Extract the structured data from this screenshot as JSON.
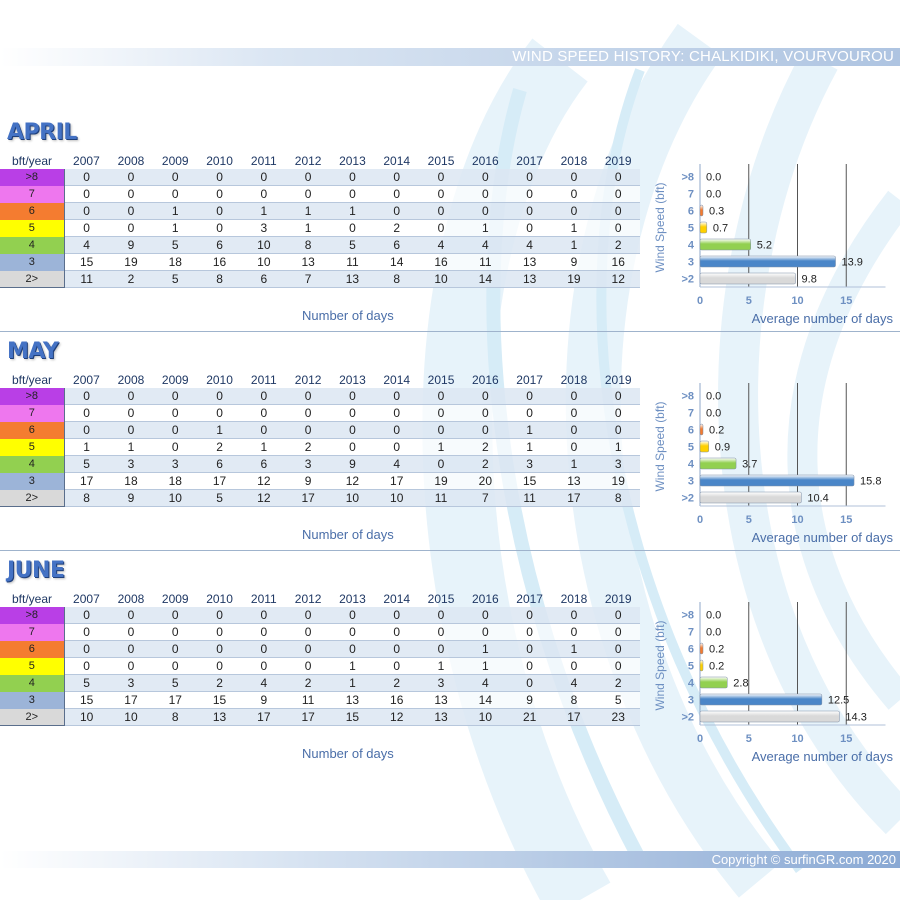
{
  "header": {
    "title": "WIND SPEED HISTORY: CHALKIDIKI, VOURVOUROU"
  },
  "footer": {
    "copyright": "Copyright © surfinGR.com 2020"
  },
  "table_header": "bft/year",
  "years": [
    "2007",
    "2008",
    "2009",
    "2010",
    "2011",
    "2012",
    "2013",
    "2014",
    "2015",
    "2016",
    "2017",
    "2018",
    "2019"
  ],
  "row_labels": [
    ">8",
    "7",
    "6",
    "5",
    "4",
    "3",
    "2>"
  ],
  "row_colors": [
    "#b93fe6",
    "#ee77ee",
    "#f47c30",
    "#ffff00",
    "#92d050",
    "#9cb4d8",
    "#d9d9d9"
  ],
  "days_caption": "Number of days",
  "months": [
    {
      "name": "APRIL",
      "rows": [
        [
          0,
          0,
          0,
          0,
          0,
          0,
          0,
          0,
          0,
          0,
          0,
          0,
          0
        ],
        [
          0,
          0,
          0,
          0,
          0,
          0,
          0,
          0,
          0,
          0,
          0,
          0,
          0
        ],
        [
          0,
          0,
          1,
          0,
          1,
          1,
          1,
          0,
          0,
          0,
          0,
          0,
          0
        ],
        [
          0,
          0,
          1,
          0,
          3,
          1,
          0,
          2,
          0,
          1,
          0,
          1,
          0
        ],
        [
          4,
          9,
          5,
          6,
          10,
          8,
          5,
          6,
          4,
          4,
          4,
          1,
          2
        ],
        [
          15,
          19,
          18,
          16,
          10,
          13,
          11,
          14,
          16,
          11,
          13,
          9,
          16
        ],
        [
          11,
          2,
          5,
          8,
          6,
          7,
          13,
          8,
          10,
          14,
          13,
          19,
          12
        ]
      ]
    },
    {
      "name": "MAY",
      "rows": [
        [
          0,
          0,
          0,
          0,
          0,
          0,
          0,
          0,
          0,
          0,
          0,
          0,
          0
        ],
        [
          0,
          0,
          0,
          0,
          0,
          0,
          0,
          0,
          0,
          0,
          0,
          0,
          0
        ],
        [
          0,
          0,
          0,
          1,
          0,
          0,
          0,
          0,
          0,
          0,
          1,
          0,
          0
        ],
        [
          1,
          1,
          0,
          2,
          1,
          2,
          0,
          0,
          1,
          2,
          1,
          0,
          1
        ],
        [
          5,
          3,
          3,
          6,
          6,
          3,
          9,
          4,
          0,
          2,
          3,
          1,
          3
        ],
        [
          17,
          18,
          18,
          17,
          12,
          9,
          12,
          17,
          19,
          20,
          15,
          13,
          19
        ],
        [
          8,
          9,
          10,
          5,
          12,
          17,
          10,
          10,
          11,
          7,
          11,
          17,
          8
        ]
      ]
    },
    {
      "name": "JUNE",
      "rows": [
        [
          0,
          0,
          0,
          0,
          0,
          0,
          0,
          0,
          0,
          0,
          0,
          0,
          0
        ],
        [
          0,
          0,
          0,
          0,
          0,
          0,
          0,
          0,
          0,
          0,
          0,
          0,
          0
        ],
        [
          0,
          0,
          0,
          0,
          0,
          0,
          0,
          0,
          0,
          1,
          0,
          1,
          0
        ],
        [
          0,
          0,
          0,
          0,
          0,
          0,
          1,
          0,
          1,
          1,
          0,
          0,
          0
        ],
        [
          5,
          3,
          5,
          2,
          4,
          2,
          1,
          2,
          3,
          4,
          0,
          4,
          2
        ],
        [
          15,
          17,
          17,
          15,
          9,
          11,
          13,
          16,
          13,
          14,
          9,
          8,
          5
        ],
        [
          10,
          10,
          8,
          13,
          17,
          17,
          15,
          12,
          13,
          10,
          21,
          17,
          23
        ]
      ]
    }
  ],
  "chart_data": [
    {
      "type": "bar",
      "orientation": "horizontal",
      "categories": [
        ">8",
        "7",
        "6",
        "5",
        "4",
        "3",
        ">2"
      ],
      "values": [
        0.0,
        0.0,
        0.3,
        0.7,
        5.2,
        13.9,
        9.8
      ],
      "bar_colors": [
        "#b93fe6",
        "#ee77ee",
        "#f47c30",
        "#ffd000",
        "#92d050",
        "#4a86c8",
        "#d9d9d9"
      ],
      "xlabel": "Average number of days",
      "ylabel": "Wind Speed (bft)",
      "xlim": [
        0,
        18
      ],
      "xticks": [
        0,
        5,
        10,
        15
      ],
      "grid": true
    },
    {
      "type": "bar",
      "orientation": "horizontal",
      "categories": [
        ">8",
        "7",
        "6",
        "5",
        "4",
        "3",
        ">2"
      ],
      "values": [
        0.0,
        0.0,
        0.2,
        0.9,
        3.7,
        15.8,
        10.4
      ],
      "bar_colors": [
        "#b93fe6",
        "#ee77ee",
        "#f47c30",
        "#ffd000",
        "#92d050",
        "#4a86c8",
        "#d9d9d9"
      ],
      "xlabel": "Average number of days",
      "ylabel": "Wind Speed (bft)",
      "xlim": [
        0,
        18
      ],
      "xticks": [
        0,
        5,
        10,
        15
      ],
      "grid": true
    },
    {
      "type": "bar",
      "orientation": "horizontal",
      "categories": [
        ">8",
        "7",
        "6",
        "5",
        "4",
        "3",
        ">2"
      ],
      "values": [
        0.0,
        0.0,
        0.2,
        0.2,
        2.8,
        12.5,
        14.3
      ],
      "bar_colors": [
        "#b93fe6",
        "#ee77ee",
        "#f47c30",
        "#ffd000",
        "#92d050",
        "#4a86c8",
        "#d9d9d9"
      ],
      "xlabel": "Average number of days",
      "ylabel": "Wind Speed (bft)",
      "xlim": [
        0,
        18
      ],
      "xticks": [
        0,
        5,
        10,
        15
      ],
      "grid": true
    }
  ]
}
